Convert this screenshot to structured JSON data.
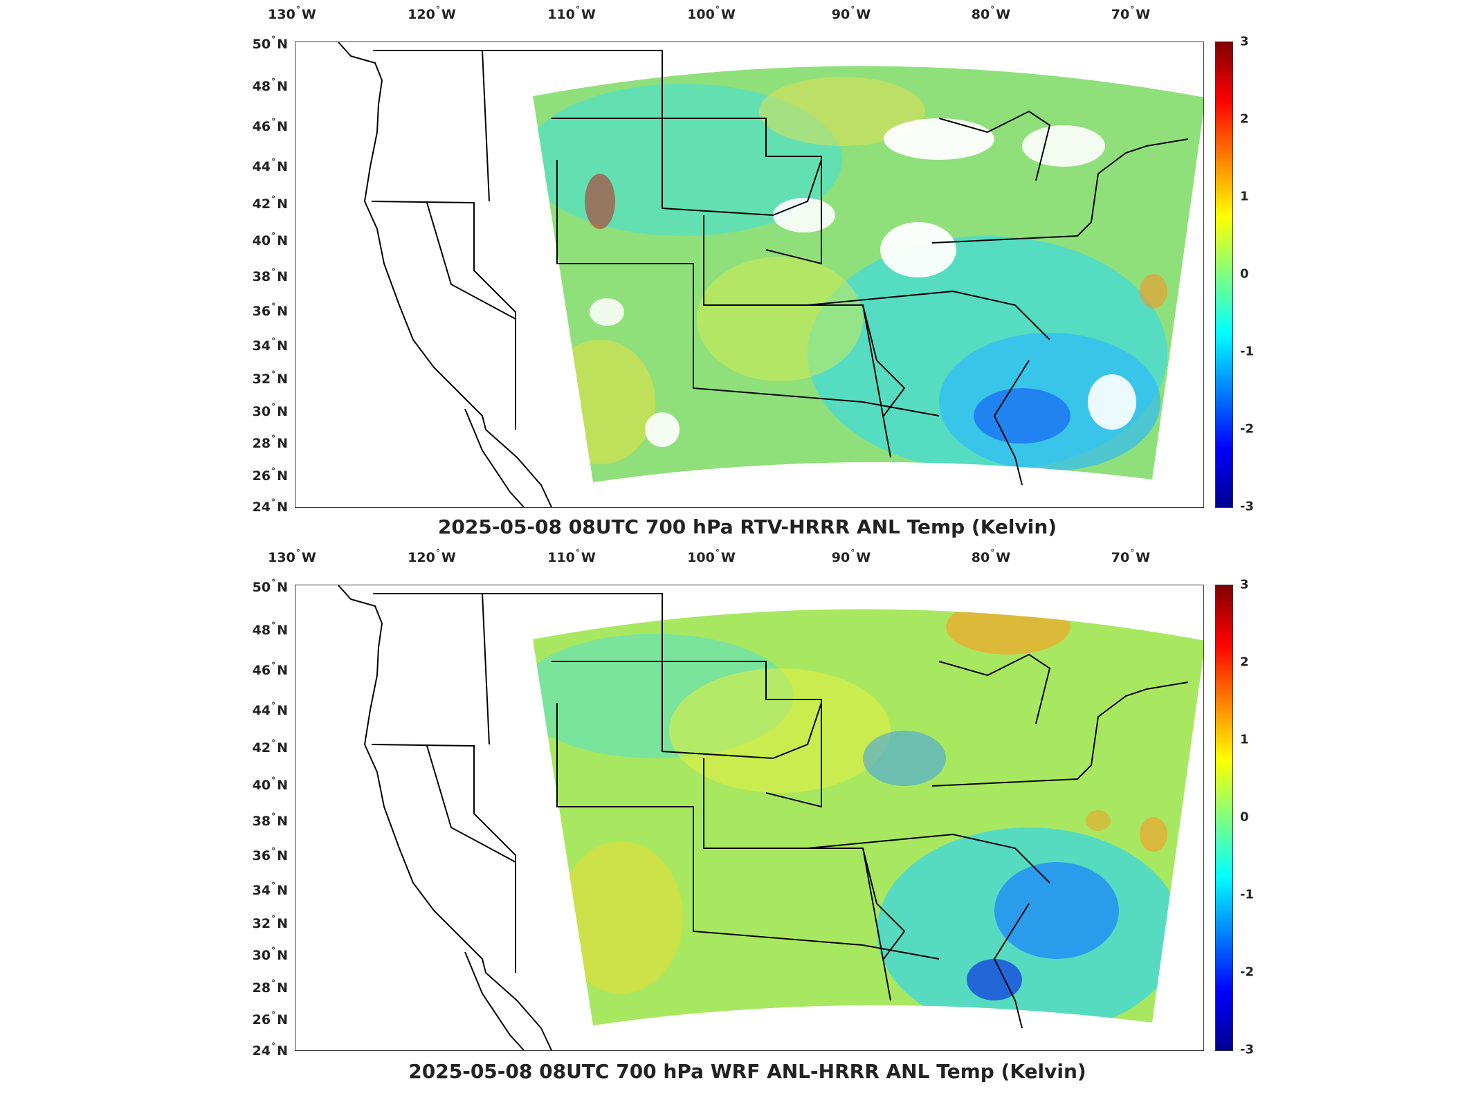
{
  "colors": {
    "colormap": [
      "#00008f",
      "#0000ff",
      "#0080ff",
      "#00ffff",
      "#80ff80",
      "#ffff00",
      "#ff8000",
      "#ff0000",
      "#800000"
    ],
    "coastline": "#000000",
    "frame": "#333333",
    "nodata": "#ffffff"
  },
  "panels": [
    {
      "title": "2025-05-08 08UTC 700 hPa RTV-HRRR ANL Temp (Kelvin)",
      "lon_ticks": [
        {
          "deg": "130",
          "hemi": "W"
        },
        {
          "deg": "120",
          "hemi": "W"
        },
        {
          "deg": "110",
          "hemi": "W"
        },
        {
          "deg": "100",
          "hemi": "W"
        },
        {
          "deg": "90",
          "hemi": "W"
        },
        {
          "deg": "80",
          "hemi": "W"
        },
        {
          "deg": "70",
          "hemi": "W"
        }
      ],
      "lat_ticks": [
        {
          "deg": "50",
          "hemi": "N"
        },
        {
          "deg": "48",
          "hemi": "N"
        },
        {
          "deg": "46",
          "hemi": "N"
        },
        {
          "deg": "44",
          "hemi": "N"
        },
        {
          "deg": "42",
          "hemi": "N"
        },
        {
          "deg": "40",
          "hemi": "N"
        },
        {
          "deg": "38",
          "hemi": "N"
        },
        {
          "deg": "36",
          "hemi": "N"
        },
        {
          "deg": "34",
          "hemi": "N"
        },
        {
          "deg": "32",
          "hemi": "N"
        },
        {
          "deg": "30",
          "hemi": "N"
        },
        {
          "deg": "28",
          "hemi": "N"
        },
        {
          "deg": "26",
          "hemi": "N"
        },
        {
          "deg": "24",
          "hemi": "N"
        }
      ],
      "colorbar": {
        "min": -3,
        "max": 3,
        "ticks": [
          "3",
          "2",
          "1",
          "0",
          "-1",
          "-2",
          "-3"
        ]
      },
      "variant": "rtv"
    },
    {
      "title": "2025-05-08 08UTC 700 hPa WRF ANL-HRRR ANL Temp (Kelvin)",
      "lon_ticks": [
        {
          "deg": "130",
          "hemi": "W"
        },
        {
          "deg": "120",
          "hemi": "W"
        },
        {
          "deg": "110",
          "hemi": "W"
        },
        {
          "deg": "100",
          "hemi": "W"
        },
        {
          "deg": "90",
          "hemi": "W"
        },
        {
          "deg": "80",
          "hemi": "W"
        },
        {
          "deg": "70",
          "hemi": "W"
        }
      ],
      "lat_ticks": [
        {
          "deg": "50",
          "hemi": "N"
        },
        {
          "deg": "48",
          "hemi": "N"
        },
        {
          "deg": "46",
          "hemi": "N"
        },
        {
          "deg": "44",
          "hemi": "N"
        },
        {
          "deg": "42",
          "hemi": "N"
        },
        {
          "deg": "40",
          "hemi": "N"
        },
        {
          "deg": "38",
          "hemi": "N"
        },
        {
          "deg": "36",
          "hemi": "N"
        },
        {
          "deg": "34",
          "hemi": "N"
        },
        {
          "deg": "32",
          "hemi": "N"
        },
        {
          "deg": "30",
          "hemi": "N"
        },
        {
          "deg": "28",
          "hemi": "N"
        },
        {
          "deg": "26",
          "hemi": "N"
        },
        {
          "deg": "24",
          "hemi": "N"
        }
      ],
      "colorbar": {
        "min": -3,
        "max": 3,
        "ticks": [
          "3",
          "2",
          "1",
          "0",
          "-1",
          "-2",
          "-3"
        ]
      },
      "variant": "wrf"
    }
  ]
}
